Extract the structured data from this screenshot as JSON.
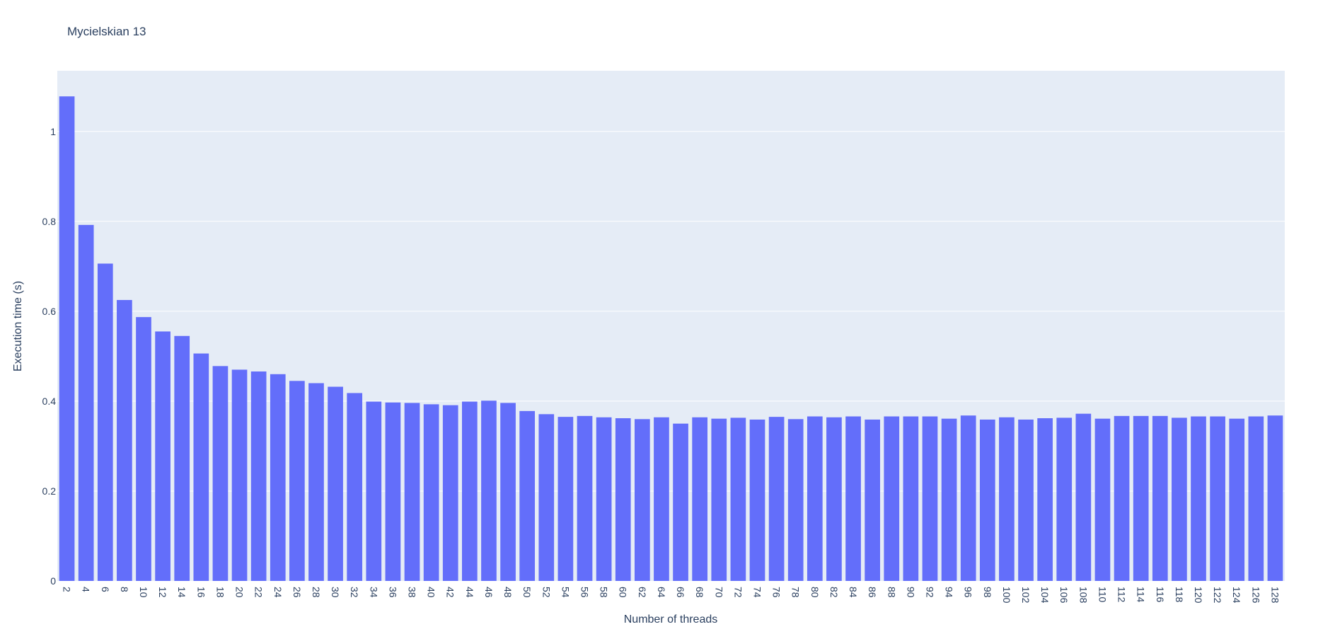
{
  "chart_data": {
    "type": "bar",
    "title": "Mycielskian 13",
    "xlabel": "Number of threads",
    "ylabel": "Execution time (s)",
    "ylim": [
      0,
      1.135
    ],
    "yticks": [
      0,
      0.2,
      0.4,
      0.6,
      0.8,
      1
    ],
    "ytick_labels": [
      "0",
      "0.2",
      "0.4",
      "0.6",
      "0.8",
      "1"
    ],
    "grid": true,
    "colors": {
      "bar": "#636efa",
      "plot_bg": "#e5ecf6",
      "grid": "#ffffff",
      "text": "#2a3f5f"
    },
    "categories": [
      "2",
      "4",
      "6",
      "8",
      "10",
      "12",
      "14",
      "16",
      "18",
      "20",
      "22",
      "24",
      "26",
      "28",
      "30",
      "32",
      "34",
      "36",
      "38",
      "40",
      "42",
      "44",
      "46",
      "48",
      "50",
      "52",
      "54",
      "56",
      "58",
      "60",
      "62",
      "64",
      "66",
      "68",
      "70",
      "72",
      "74",
      "76",
      "78",
      "80",
      "82",
      "84",
      "86",
      "88",
      "90",
      "92",
      "94",
      "96",
      "98",
      "100",
      "102",
      "104",
      "106",
      "108",
      "110",
      "112",
      "114",
      "116",
      "118",
      "120",
      "122",
      "124",
      "126",
      "128"
    ],
    "values": [
      1.078,
      0.792,
      0.706,
      0.625,
      0.587,
      0.555,
      0.545,
      0.506,
      0.478,
      0.47,
      0.466,
      0.46,
      0.445,
      0.44,
      0.432,
      0.418,
      0.399,
      0.397,
      0.396,
      0.393,
      0.391,
      0.399,
      0.401,
      0.396,
      0.378,
      0.371,
      0.365,
      0.367,
      0.364,
      0.362,
      0.36,
      0.364,
      0.35,
      0.364,
      0.361,
      0.363,
      0.359,
      0.365,
      0.36,
      0.366,
      0.364,
      0.366,
      0.359,
      0.366,
      0.366,
      0.366,
      0.361,
      0.368,
      0.359,
      0.364,
      0.359,
      0.362,
      0.363,
      0.372,
      0.361,
      0.367,
      0.367,
      0.367,
      0.363,
      0.366,
      0.366,
      0.361,
      0.366,
      0.368
    ]
  }
}
